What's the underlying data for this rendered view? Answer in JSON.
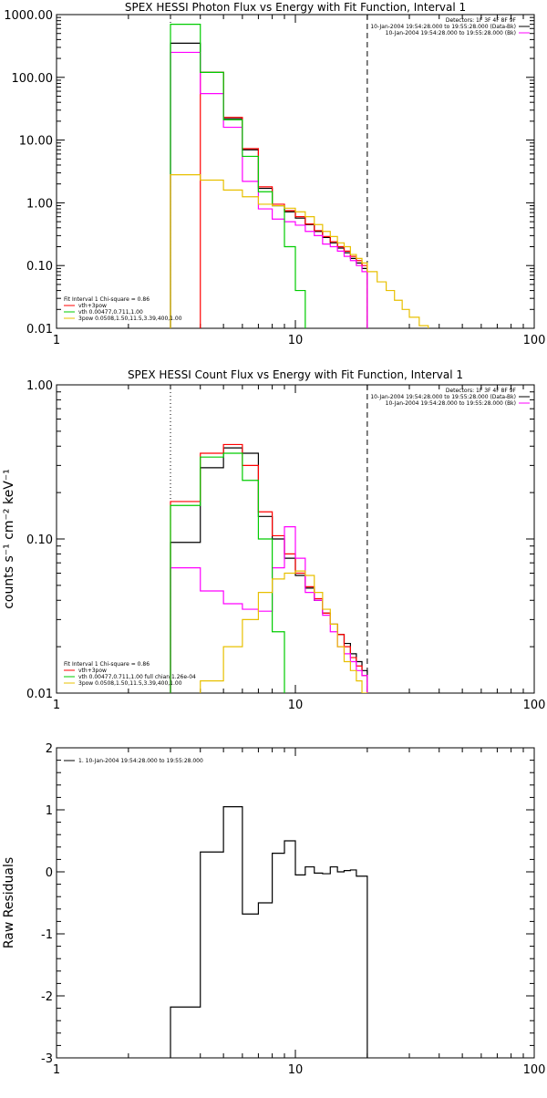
{
  "chart_data": [
    {
      "id": "photon",
      "type": "line",
      "step": true,
      "title": "SPEX HESSI Photon Flux vs Energy with Fit Function, Interval 1",
      "xlabel": "",
      "ylabel": "",
      "xscale": "log",
      "yscale": "log",
      "xlim": [
        1,
        100
      ],
      "ylim": [
        0.01,
        1000
      ],
      "x_ticks": [
        "1",
        "10",
        "100"
      ],
      "y_ticks": [
        "0.01",
        "0.10",
        "1.00",
        "10.00",
        "100.00",
        "1000.00"
      ],
      "grid": false,
      "header_lines": [
        "Detectors: 1F 3F 4F 8F 9F",
        "10-Jan-2004 19:54:28.000 to 19:55:28.000 (Data-Bk)",
        "10-Jan-2004 19:54:28.000 to 19:55:28.000 (Bk)"
      ],
      "legend_lines": [
        "Fit Interval 1   Chi-square = 0.86",
        "vth+3pow",
        "vth 0.00477,0.711,1.00",
        "3pow 0.0508,1.50,11.5,3.39,400,1.00"
      ],
      "vlines": [
        {
          "x": 3.0,
          "style": "dotted"
        },
        {
          "x": 20.0,
          "style": "dashed"
        }
      ],
      "bin_edges": [
        3,
        4,
        5,
        6,
        7,
        8,
        9,
        10,
        11,
        12,
        13,
        14,
        15,
        16,
        17,
        18,
        19,
        20,
        22,
        24,
        26,
        28,
        30,
        33,
        36,
        40
      ],
      "series": [
        {
          "name": "Data-Bk",
          "color": "#000000",
          "values": [
            350,
            120,
            22,
            7,
            1.7,
            0.9,
            0.72,
            0.57,
            0.45,
            0.35,
            0.28,
            0.23,
            0.19,
            0.16,
            0.13,
            0.11,
            0.09
          ]
        },
        {
          "name": "vth+3pow",
          "color": "#ff0000",
          "values": [
            null,
            120,
            23,
            7.3,
            1.8,
            0.95,
            0.75,
            0.6,
            0.46,
            0.36,
            0.29,
            0.24,
            0.2,
            0.17,
            0.14,
            0.12,
            0.1
          ]
        },
        {
          "name": "Bk",
          "color": "#ff00ff",
          "values": [
            250,
            55,
            16,
            2.2,
            0.8,
            0.55,
            0.5,
            0.44,
            0.35,
            0.3,
            0.22,
            0.2,
            0.17,
            0.14,
            0.12,
            0.1,
            0.08
          ]
        },
        {
          "name": "vth",
          "color": "#00cc00",
          "values": [
            700,
            120,
            21,
            5.5,
            1.5,
            0.9,
            0.2,
            0.04
          ]
        },
        {
          "name": "3pow",
          "color": "#e8c000",
          "values": [
            2.8,
            2.3,
            1.6,
            1.25,
            0.95,
            0.9,
            0.82,
            0.72,
            0.6,
            0.45,
            0.35,
            0.29,
            0.23,
            0.2,
            0.15,
            0.13,
            0.11,
            0.08,
            0.055,
            0.04,
            0.028,
            0.02,
            0.015,
            0.011,
            0.009
          ]
        }
      ]
    },
    {
      "id": "count",
      "type": "line",
      "step": true,
      "title": "SPEX HESSI Count Flux vs Energy with Fit Function, Interval 1",
      "xlabel": "",
      "ylabel": "counts s⁻¹ cm⁻² keV⁻¹",
      "xscale": "log",
      "yscale": "log",
      "xlim": [
        1,
        100
      ],
      "ylim": [
        0.01,
        1
      ],
      "x_ticks": [
        "1",
        "10",
        "100"
      ],
      "y_ticks": [
        "0.01",
        "0.10",
        "1.00"
      ],
      "grid": false,
      "header_lines": [
        "Detectors: 1F 3F 4F 8F 9F",
        "10-Jan-2004 19:54:28.000 to 19:55:28.000 (Data-Bk)",
        "10-Jan-2004 19:54:28.000 to 19:55:28.000 (Bk)"
      ],
      "legend_lines": [
        "Fit Interval 1   Chi-square = 0.86",
        "vth+3pow",
        "vth 0.00477,0.711,1.00  full chian 1.26e-04",
        "3pow 0.0508,1.50,11.5,3.39,400,1.00"
      ],
      "vlines": [
        {
          "x": 3.0,
          "style": "dotted"
        },
        {
          "x": 20.0,
          "style": "dashed"
        }
      ],
      "bin_edges": [
        3,
        4,
        5,
        6,
        7,
        8,
        9,
        10,
        11,
        12,
        13,
        14,
        15,
        16,
        17,
        18,
        19,
        20
      ],
      "series": [
        {
          "name": "Data-Bk",
          "color": "#000000",
          "values": [
            0.095,
            0.29,
            0.39,
            0.36,
            0.14,
            0.1,
            0.075,
            0.058,
            0.048,
            0.04,
            0.033,
            0.028,
            0.024,
            0.021,
            0.018,
            0.016,
            0.014
          ]
        },
        {
          "name": "vth+3pow",
          "color": "#ff0000",
          "values": [
            0.175,
            0.36,
            0.41,
            0.3,
            0.15,
            0.105,
            0.08,
            0.06,
            0.049,
            0.041,
            0.033,
            0.028,
            0.024,
            0.02,
            0.017,
            0.015,
            0.013
          ]
        },
        {
          "name": "Bk",
          "color": "#ff00ff",
          "values": [
            0.065,
            0.046,
            0.038,
            0.035,
            0.034,
            0.065,
            0.12,
            0.075,
            0.045,
            0.04,
            0.032,
            0.025,
            0.02,
            0.018,
            0.016,
            0.014,
            0.013
          ]
        },
        {
          "name": "vth",
          "color": "#00cc00",
          "values": [
            0.165,
            0.34,
            0.36,
            0.24,
            0.1,
            0.025,
            0.008
          ]
        },
        {
          "name": "3pow",
          "color": "#e8c000",
          "values": [
            0.004,
            0.012,
            0.02,
            0.03,
            0.045,
            0.055,
            0.06,
            0.062,
            0.058,
            0.045,
            0.035,
            0.028,
            0.02,
            0.016,
            0.014,
            0.012,
            0.01
          ]
        }
      ]
    },
    {
      "id": "residuals",
      "type": "line",
      "step": true,
      "title": "",
      "xlabel": "",
      "ylabel": "Raw Residuals",
      "xscale": "log",
      "yscale": "linear",
      "xlim": [
        1,
        100
      ],
      "ylim": [
        -3,
        2
      ],
      "x_ticks": [
        "1",
        "10",
        "100"
      ],
      "y_ticks": [
        "-3",
        "-2",
        "-1",
        "0",
        "1",
        "2"
      ],
      "grid": false,
      "header_lines": [],
      "legend_lines": [
        "1. 10-Jan-2004 19:54:28.000 to 19:55:28.000"
      ],
      "vlines": [],
      "bin_edges": [
        3,
        4,
        5,
        6,
        7,
        8,
        9,
        10,
        11,
        12,
        13,
        14,
        15,
        16,
        17,
        18,
        19,
        20
      ],
      "series": [
        {
          "name": "1. 10-Jan-2004 19:54:28.000 to 19:55:28.000",
          "color": "#000000",
          "values": [
            -2.18,
            0.32,
            1.05,
            -0.68,
            -0.5,
            0.3,
            0.5,
            -0.05,
            0.08,
            -0.02,
            -0.03,
            0.08,
            0.0,
            0.02,
            0.03,
            -0.07,
            -0.07
          ]
        }
      ]
    }
  ]
}
